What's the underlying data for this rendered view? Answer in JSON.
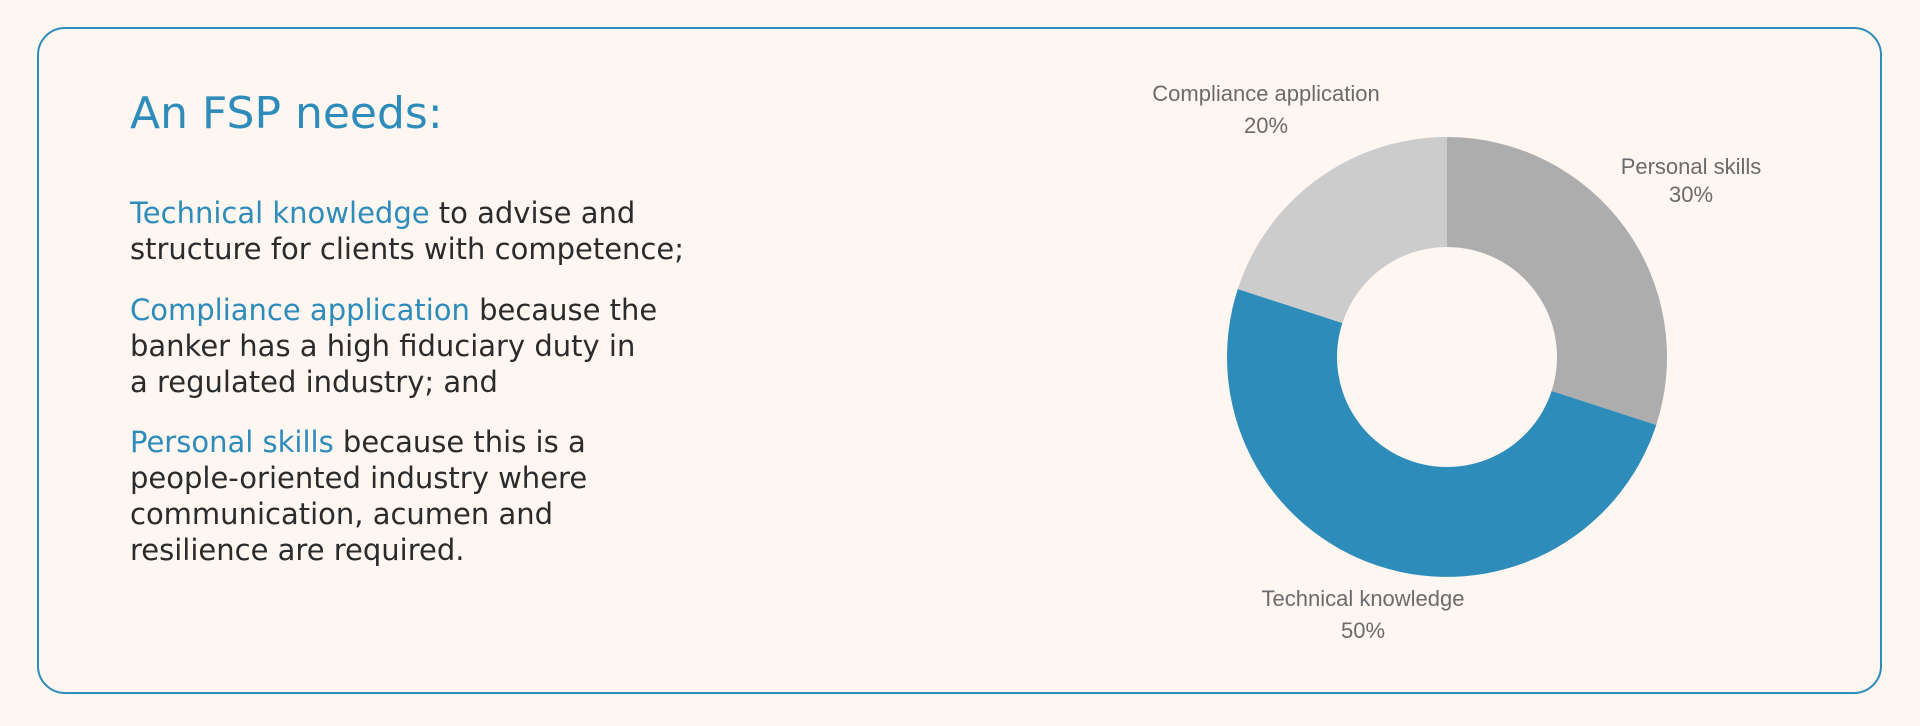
{
  "heading": "An FSP needs:",
  "items": [
    {
      "highlight": "Technical knowledge",
      "rest": "to advise and structure for clients with competence;"
    },
    {
      "highlight": "Compliance application",
      "rest": "because the banker has a high fiduciary duty in a regulated industry; and"
    },
    {
      "highlight": "Personal skills",
      "rest": "because this is a people-oriented industry where communication, acumen and resilience are required."
    }
  ],
  "colors": {
    "accent": "#2e8cbb",
    "personal": "#adadad",
    "compliance": "#cccccc",
    "text": "#2b2b2b",
    "label": "#6b6b6b",
    "background": "#fdf6f1"
  },
  "chart_data": {
    "type": "pie",
    "donut": true,
    "start": "top",
    "direction": "clockwise",
    "categories": [
      "Personal skills",
      "Technical knowledge",
      "Compliance application"
    ],
    "values": [
      30,
      50,
      20
    ],
    "value_labels": [
      "30%",
      "50%",
      "20%"
    ],
    "colors": [
      "#adadad",
      "#2e8cbb",
      "#cccccc"
    ]
  }
}
